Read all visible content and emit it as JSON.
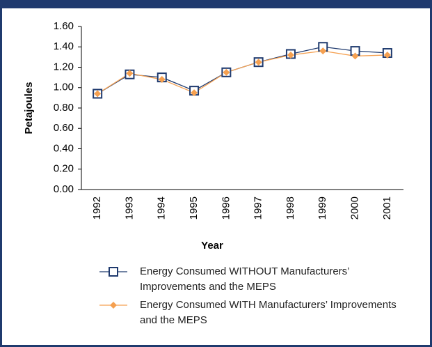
{
  "chart_data": {
    "type": "line",
    "y_label": "Petajoules",
    "x_label": "Year",
    "categories": [
      "1992",
      "1993",
      "1994",
      "1995",
      "1996",
      "1997",
      "1998",
      "1999",
      "2000",
      "2001"
    ],
    "series": [
      {
        "name": "Energy Consumed WITHOUT Manufacturers’ Improvements and the MEPS",
        "color": "#1f3a6e",
        "marker": "square",
        "values": [
          0.94,
          1.13,
          1.1,
          0.97,
          1.15,
          1.25,
          1.33,
          1.4,
          1.36,
          1.34
        ]
      },
      {
        "name": "Energy Consumed WITH Manufacturers’ Improvements and the MEPS",
        "color": "#f5a050",
        "marker": "diamond",
        "values": [
          0.94,
          1.14,
          1.08,
          0.95,
          1.15,
          1.25,
          1.32,
          1.36,
          1.31,
          1.32
        ]
      }
    ],
    "ylim": [
      0,
      1.6
    ],
    "yticks": [
      {
        "value": 0,
        "label": "0.00"
      },
      {
        "value": 0.2,
        "label": "0.20"
      },
      {
        "value": 0.4,
        "label": "0.40"
      },
      {
        "value": 0.6,
        "label": "0.60"
      },
      {
        "value": 0.8,
        "label": "0.80"
      },
      {
        "value": 1.0,
        "label": "1.00"
      },
      {
        "value": 1.2,
        "label": "1.20"
      },
      {
        "value": 1.4,
        "label": "1.40"
      },
      {
        "value": 1.6,
        "label": "1.60"
      }
    ],
    "grid": false,
    "legend": "bottom"
  }
}
